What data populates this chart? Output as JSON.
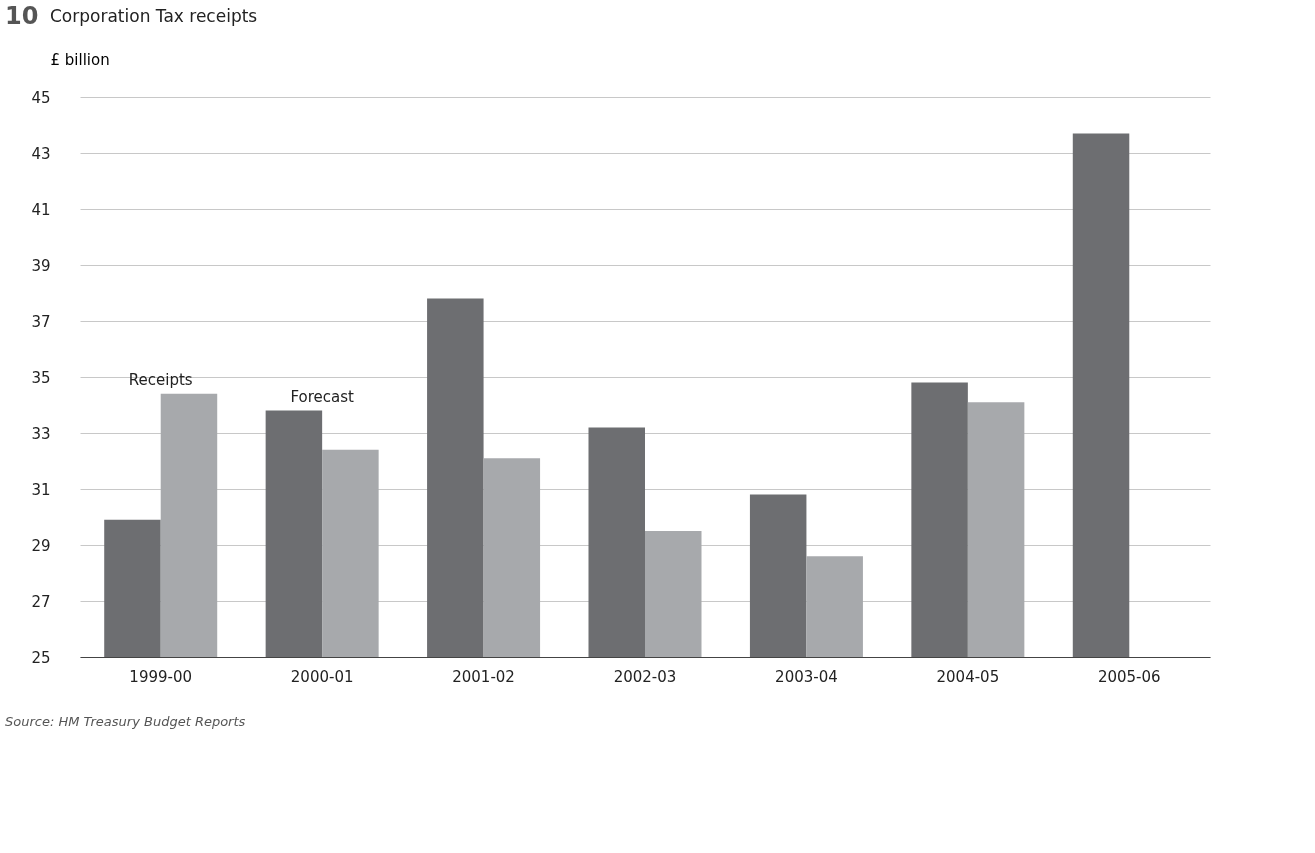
{
  "chart_data": {
    "type": "bar",
    "title": "Corporation Tax receipts",
    "ylabel": "£ billion",
    "categories": [
      "1999-00",
      "2000-01",
      "2001-02",
      "2002-03",
      "2003-04",
      "2004-05",
      "2005-06"
    ],
    "series": [
      {
        "color": "#6d6e71",
        "values": [
          29.9,
          33.8,
          37.8,
          33.2,
          30.8,
          34.8,
          43.7
        ]
      },
      {
        "color": "#a7a9ac",
        "values": [
          34.4,
          32.4,
          32.1,
          29.5,
          28.6,
          34.1,
          null
        ]
      }
    ],
    "ylim": [
      25,
      45
    ],
    "yticks": [
      25,
      27,
      29,
      31,
      33,
      35,
      37,
      39,
      41,
      43,
      45
    ],
    "grid": "y",
    "legend": false,
    "annotations": [
      "10",
      {
        "text": "Receipts",
        "x": "1999-00",
        "y": 34.4
      },
      {
        "text": "Forecast",
        "x": "2000-01",
        "y": 33.8
      },
      "Source: HM Treasury Budget Reports"
    ]
  }
}
